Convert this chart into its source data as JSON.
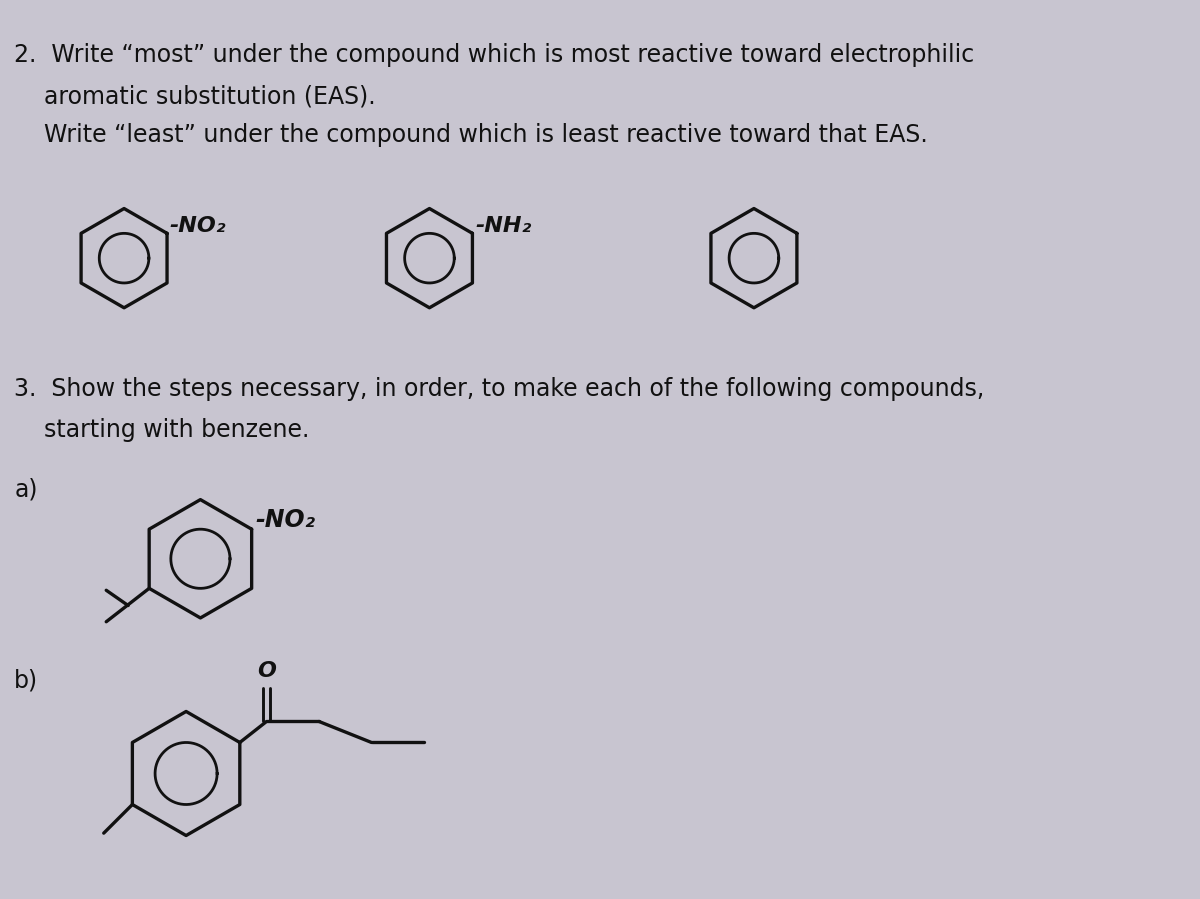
{
  "background_color": "#c8c5d0",
  "text_color": "#111111",
  "q2_line1": "2.  Write “most” under the compound which is most reactive toward electrophilic",
  "q2_line2": "    aromatic substitution (EAS).",
  "q2_line3": "    Write “least” under the compound which is least reactive toward that EAS.",
  "q3_line1": "3.  Show the steps necessary, in order, to make each of the following compounds,",
  "q3_line2": "    starting with benzene.",
  "label_a": "a)",
  "label_b": "b)",
  "sub1": "-NO₂",
  "sub2": "-NH₂",
  "font_size_main": 17,
  "ring_lw": 2.4,
  "ring_lw_inner": 2.0,
  "draw_color": "#111111"
}
